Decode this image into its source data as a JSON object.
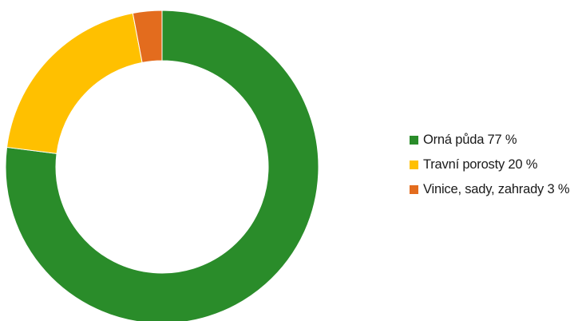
{
  "chart_data": {
    "type": "pie",
    "variant": "donut",
    "title": "",
    "categories": [
      "Orná půda",
      "Travní porosty",
      "Vinice, sady, zahrady"
    ],
    "values": [
      77,
      20,
      3
    ],
    "unit": "%",
    "colors": [
      "#2a8c2a",
      "#ffc000",
      "#e36c1e"
    ],
    "legend_labels": [
      "Orná půda 77 %",
      "Travní porosty 20 %",
      "Vinice, sady, zahrady 3 %"
    ],
    "legend_position": "right",
    "start_angle": "top",
    "direction": "clockwise"
  }
}
